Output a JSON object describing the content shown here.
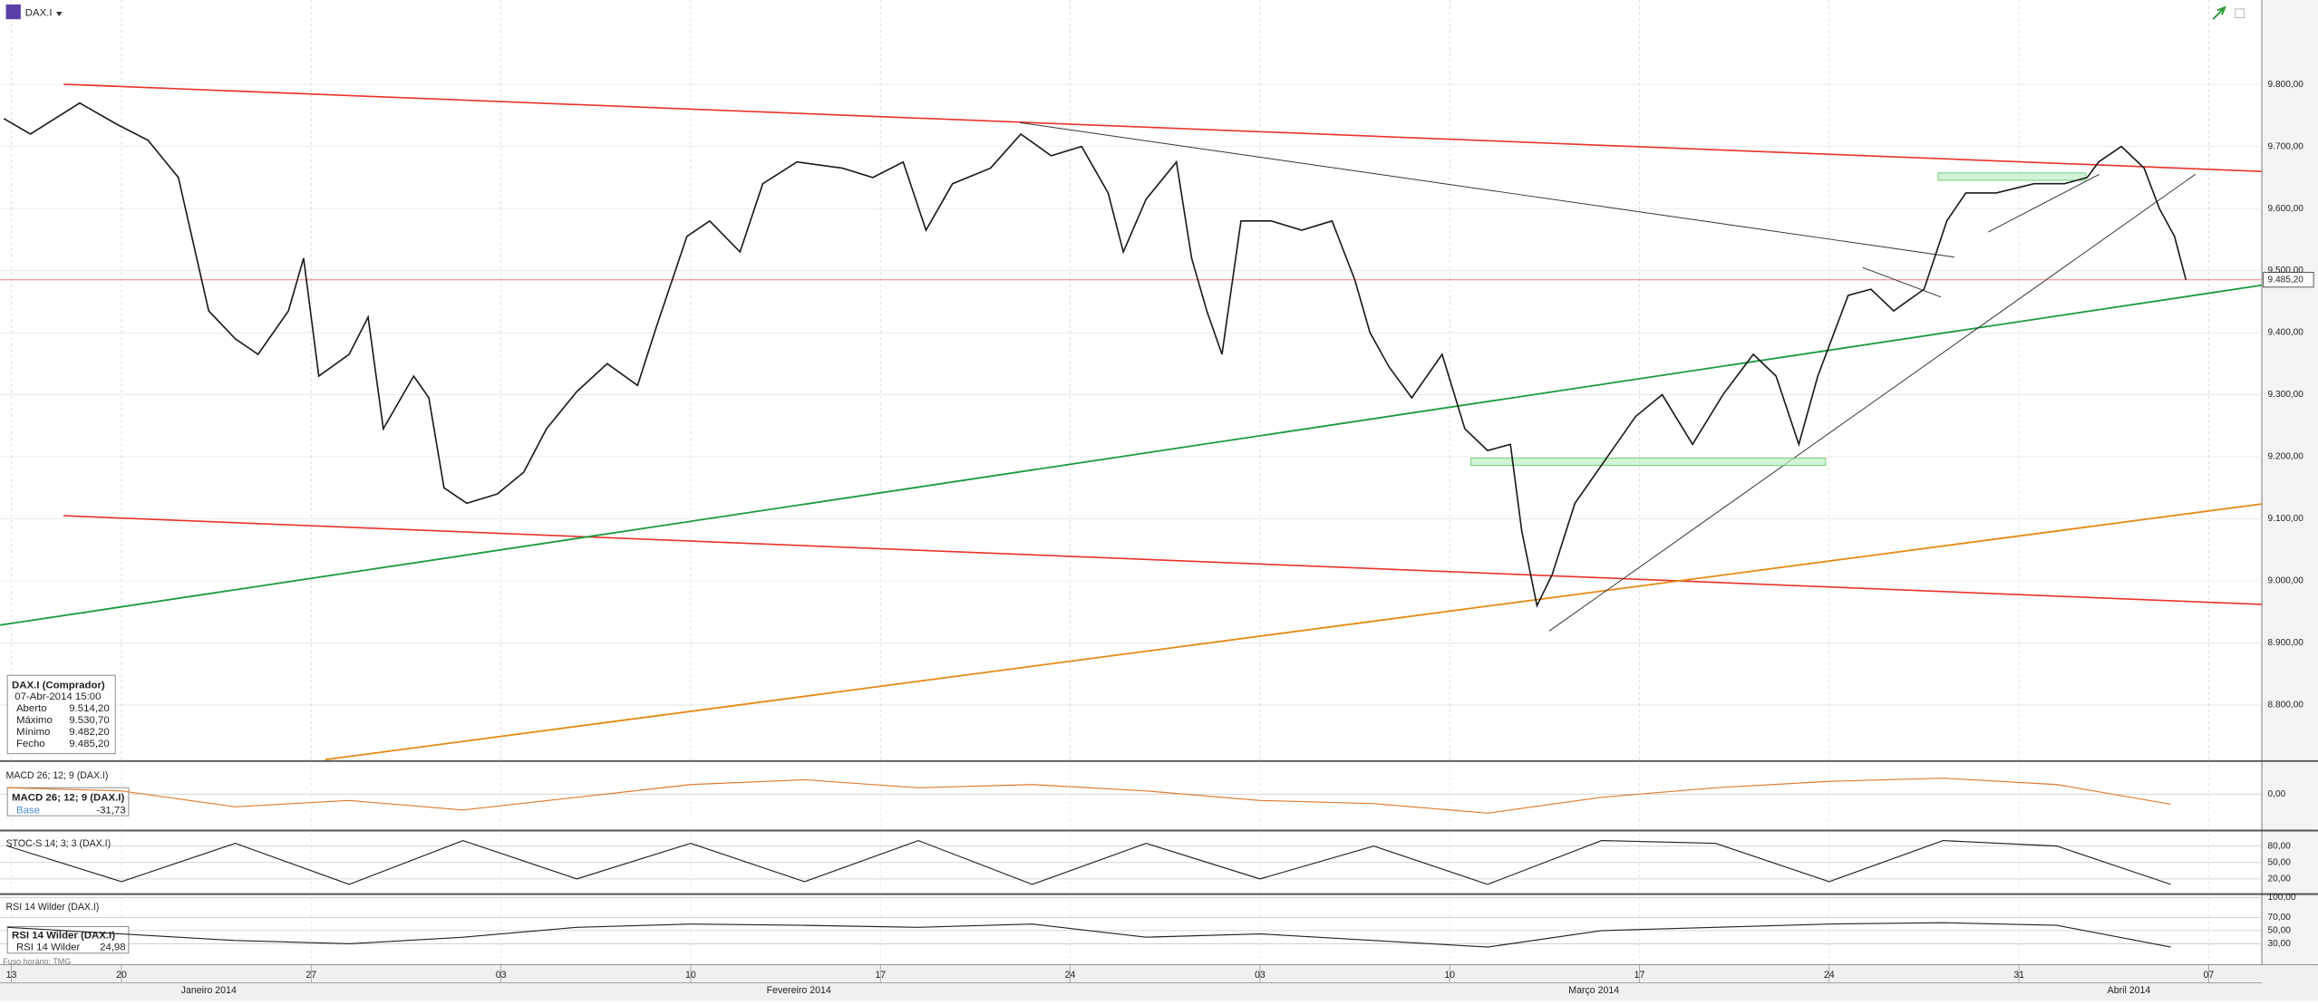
{
  "header": {
    "symbol": "DAX.I"
  },
  "chart_data": [
    {
      "type": "line",
      "color": "#1a1a1a",
      "xlim": [
        -3.2,
        56.4
      ],
      "ylim": [
        8712,
        9936
      ],
      "x": [
        -3.1,
        -2.4,
        -1.1,
        -0.1,
        0.7,
        1.5,
        2.3,
        3.0,
        3.6,
        4.4,
        4.8,
        5.2,
        6.0,
        6.5,
        6.9,
        7.7,
        8.1,
        8.5,
        9.1,
        9.9,
        10.6,
        11.2,
        12.0,
        12.8,
        13.6,
        14.1,
        14.9,
        15.5,
        16.3,
        16.9,
        17.8,
        19.0,
        19.8,
        20.6,
        21.2,
        21.9,
        22.9,
        23.7,
        24.5,
        25.3,
        26.0,
        26.4,
        27.0,
        27.8,
        28.2,
        28.6,
        29.0,
        29.5,
        30.3,
        31.1,
        31.9,
        32.5,
        32.9,
        33.4,
        34.0,
        34.8,
        35.4,
        36.0,
        36.6,
        36.9,
        37.3,
        37.7,
        38.3,
        39.1,
        39.9,
        40.6,
        41.4,
        42.2,
        43.0,
        43.6,
        44.2,
        44.7,
        45.5,
        46.1,
        46.7,
        47.5,
        48.1,
        48.6,
        49.4,
        50.4,
        51.2,
        51.8,
        52.1,
        52.7,
        53.3,
        53.7,
        54.1,
        54.4
      ],
      "values": [
        9745,
        9720,
        9770,
        9735,
        9710,
        9650,
        9435,
        9390,
        9365,
        9435,
        9520,
        9330,
        9365,
        9425,
        9245,
        9330,
        9295,
        9150,
        9125,
        9140,
        9175,
        9245,
        9305,
        9350,
        9315,
        9410,
        9555,
        9580,
        9530,
        9640,
        9675,
        9665,
        9650,
        9675,
        9565,
        9640,
        9665,
        9720,
        9685,
        9700,
        9625,
        9530,
        9615,
        9675,
        9520,
        9435,
        9365,
        9580,
        9580,
        9565,
        9580,
        9485,
        9400,
        9345,
        9295,
        9365,
        9245,
        9210,
        9220,
        9080,
        8960,
        9010,
        9125,
        9195,
        9265,
        9300,
        9220,
        9300,
        9365,
        9330,
        9220,
        9330,
        9460,
        9470,
        9435,
        9470,
        9580,
        9625,
        9625,
        9640,
        9640,
        9650,
        9675,
        9700,
        9665,
        9600,
        9555,
        9485.2
      ],
      "last_price": {
        "value": 9485.2,
        "label": "9.485,20"
      },
      "yticks": [
        {
          "value": 8800,
          "label": "8.800,00"
        },
        {
          "value": 8900,
          "label": "8.900,00"
        },
        {
          "value": 9000,
          "label": "9.000,00"
        },
        {
          "value": 9100,
          "label": "9.100,00"
        },
        {
          "value": 9200,
          "label": "9.200,00"
        },
        {
          "value": 9300,
          "label": "9.300,00"
        },
        {
          "value": 9400,
          "label": "9.400,00"
        },
        {
          "value": 9500,
          "label": "9.500,00"
        },
        {
          "value": 9600,
          "label": "9.600,00"
        },
        {
          "value": 9700,
          "label": "9.700,00"
        },
        {
          "value": 9800,
          "label": "9.800,00"
        }
      ],
      "xticks": [
        {
          "value": -2.9,
          "label": "13"
        },
        {
          "value": 0,
          "label": "20"
        },
        {
          "value": 5,
          "label": "27"
        },
        {
          "value": 10,
          "label": "03"
        },
        {
          "value": 15,
          "label": "10"
        },
        {
          "value": 20,
          "label": "17"
        },
        {
          "value": 25,
          "label": "24"
        },
        {
          "value": 30,
          "label": "03"
        },
        {
          "value": 35,
          "label": "10"
        },
        {
          "value": 40,
          "label": "17"
        },
        {
          "value": 45,
          "label": "24"
        },
        {
          "value": 50,
          "label": "31"
        },
        {
          "value": 55,
          "label": "07"
        }
      ],
      "xmonths": [
        {
          "value": 2.3,
          "label": "Janeiro 2014"
        },
        {
          "value": 17.85,
          "label": "Fevereiro 2014"
        },
        {
          "value": 38.8,
          "label": "Março 2014"
        },
        {
          "value": 52.9,
          "label": "Abril 2014"
        }
      ],
      "grid": true
    },
    {
      "type": "line",
      "title": "MACD 26; 12; 9 (DAX.I)",
      "color": "#e07a2a",
      "xlim": [
        -3.2,
        56.4
      ],
      "ylim": [
        -110,
        90
      ],
      "x": [
        -3,
        0,
        3,
        6,
        9,
        12,
        15,
        18,
        21,
        24,
        27,
        30,
        33,
        36,
        39,
        42,
        45,
        48,
        51,
        54
      ],
      "values": [
        20,
        10,
        -40,
        -20,
        -50,
        -10,
        30,
        45,
        20,
        30,
        10,
        -20,
        -30,
        -60,
        -10,
        20,
        40,
        50,
        30,
        -31.73
      ],
      "yticks": [
        {
          "value": 0,
          "label": "0,00"
        }
      ]
    },
    {
      "type": "line",
      "title": "STOC-S 14; 3; 3 (DAX.I)",
      "color": "#222222",
      "xlim": [
        -3.2,
        56.4
      ],
      "ylim": [
        -5,
        103
      ],
      "x": [
        -3,
        0,
        3,
        6,
        9,
        12,
        15,
        18,
        21,
        24,
        27,
        30,
        33,
        36,
        39,
        42,
        45,
        48,
        51,
        54
      ],
      "values": [
        80,
        15,
        85,
        10,
        90,
        20,
        85,
        15,
        90,
        10,
        85,
        20,
        80,
        10,
        90,
        85,
        15,
        90,
        80,
        10
      ],
      "yticks": [
        {
          "value": 20,
          "label": "20,00"
        },
        {
          "value": 50,
          "label": "50,00"
        },
        {
          "value": 80,
          "label": "80,00"
        }
      ]
    },
    {
      "type": "line",
      "title": "RSI 14 Wilder (DAX.I)",
      "color": "#222222",
      "xlim": [
        -3.2,
        56.4
      ],
      "ylim": [
        0,
        101
      ],
      "x": [
        -3,
        0,
        3,
        6,
        9,
        12,
        15,
        18,
        21,
        24,
        27,
        30,
        33,
        36,
        39,
        42,
        45,
        48,
        51,
        54
      ],
      "values": [
        55,
        45,
        35,
        30,
        40,
        55,
        60,
        58,
        55,
        60,
        40,
        45,
        35,
        25,
        50,
        55,
        60,
        62,
        58,
        24.98
      ],
      "yticks": [
        {
          "value": 30,
          "label": "30,00"
        },
        {
          "value": 50,
          "label": "50,00"
        },
        {
          "value": 70,
          "label": "70,00"
        },
        {
          "value": 100,
          "label": "100,00"
        }
      ]
    }
  ],
  "info_box": {
    "title": "DAX.I (Comprador)",
    "date": "07-Abr-2014 15:00",
    "rows": [
      [
        "Aberto",
        "9.514,20"
      ],
      [
        "Máximo",
        "9.530,70"
      ],
      [
        "Mínimo",
        "9.482,20"
      ],
      [
        "Fecho",
        "9.485,20"
      ]
    ]
  },
  "macd_box": {
    "title": "MACD 26; 12; 9 (DAX.I)",
    "label": "Base",
    "value": "-31,73"
  },
  "rsi_box": {
    "title": "RSI 14 Wilder (DAX.I)",
    "label": "RSI 14 Wilder",
    "value": "24,98"
  },
  "timezone": "Fuso horário: TMG"
}
